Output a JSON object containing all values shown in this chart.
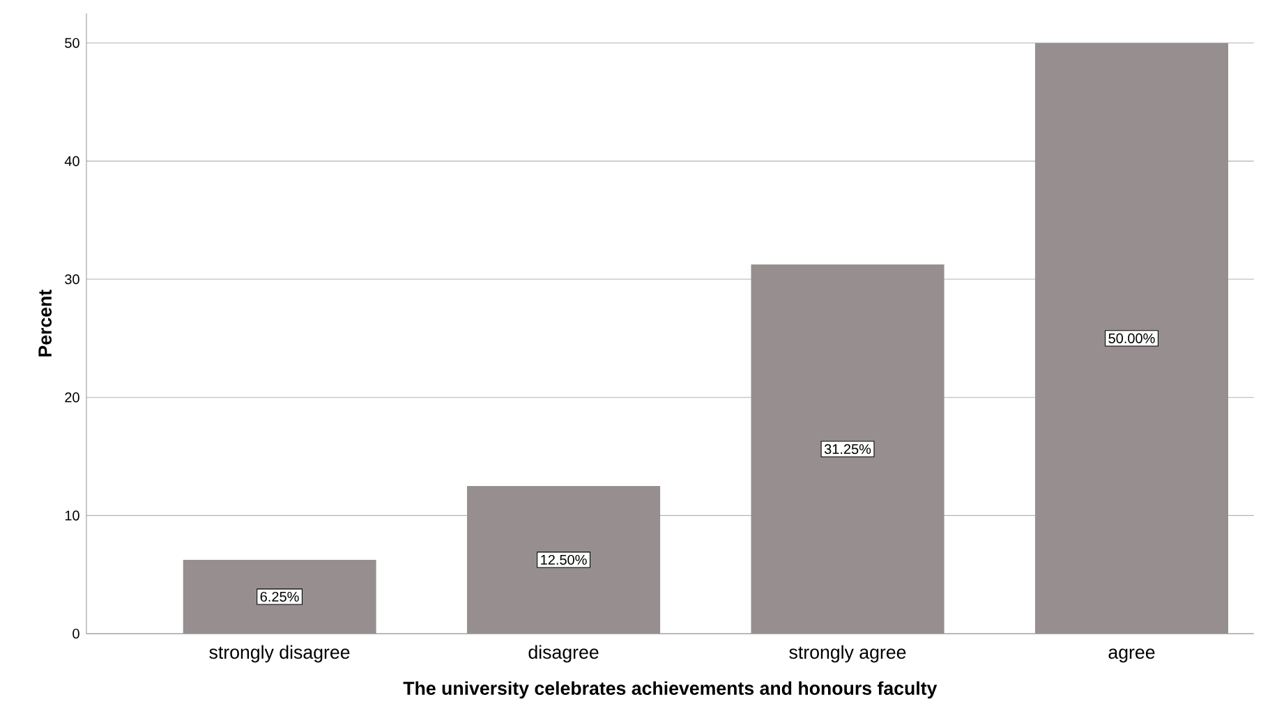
{
  "chart_data": {
    "type": "bar",
    "xlabel": "The university celebrates achievements and honours faculty",
    "ylabel": "Percent",
    "categories": [
      "strongly disagree",
      "disagree",
      "strongly agree",
      "agree"
    ],
    "values": [
      6.25,
      12.5,
      31.25,
      50
    ],
    "value_labels": [
      "6.25%",
      "12.50%",
      "31.25%",
      "50.00%"
    ],
    "color": "#978f8f",
    "ylim": [
      0,
      52.5
    ],
    "yticks": [
      0,
      10,
      20,
      30,
      40,
      50
    ],
    "grid": "y"
  }
}
